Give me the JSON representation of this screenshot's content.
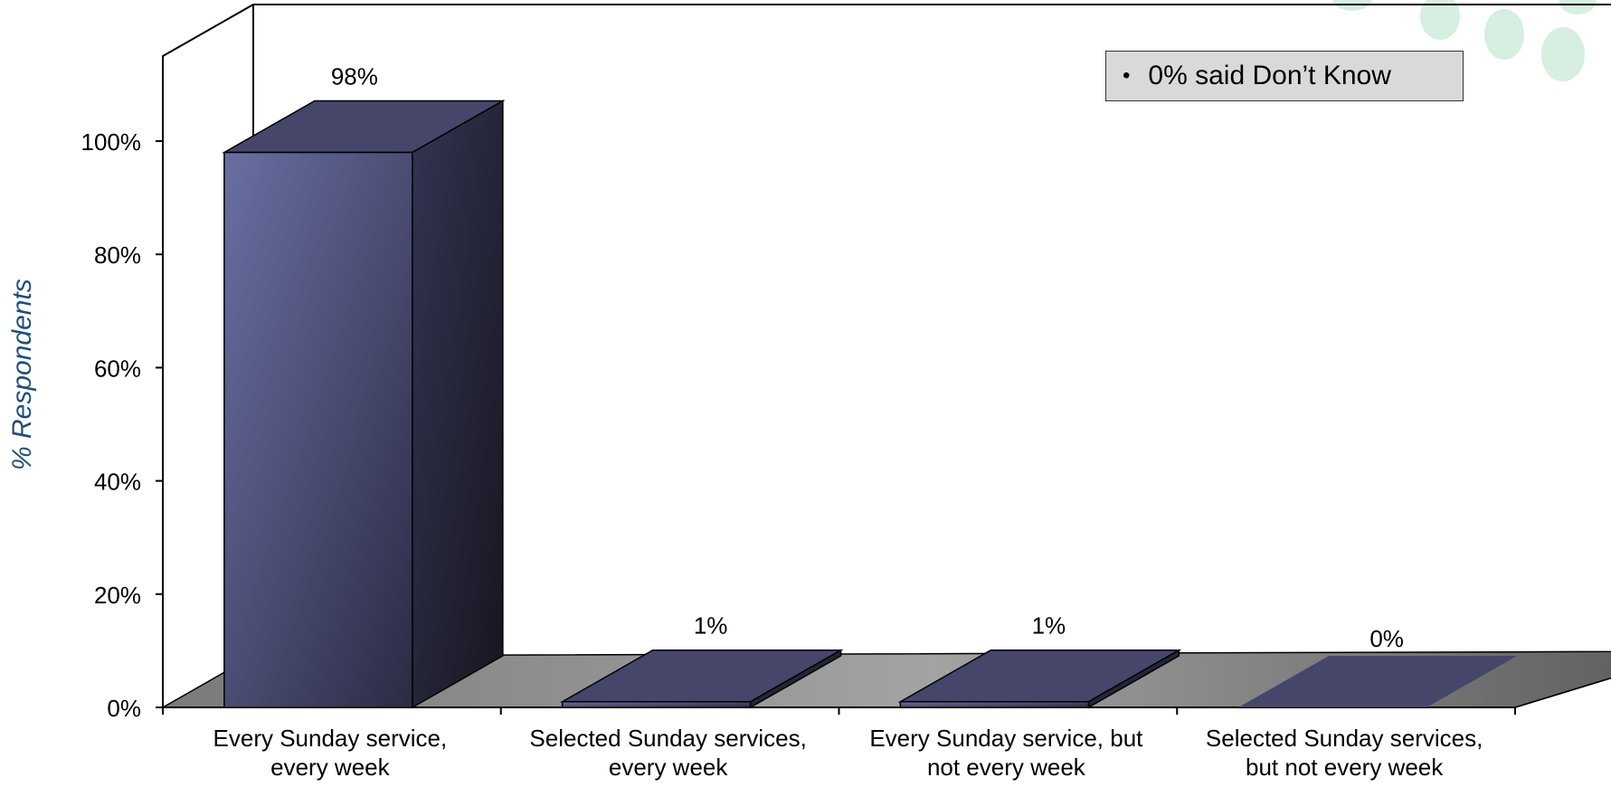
{
  "chart_data": {
    "type": "bar",
    "categories": [
      [
        "Every Sunday service,",
        "every week"
      ],
      [
        "Selected Sunday services,",
        "every week"
      ],
      [
        "Every Sunday service, but",
        "not every week"
      ],
      [
        "Selected Sunday services,",
        "but not every week"
      ]
    ],
    "values": [
      98,
      1,
      1,
      0
    ],
    "data_labels": [
      "98%",
      "1%",
      "1%",
      "0%"
    ],
    "ylabel": "% Respondents",
    "ylim": [
      0,
      100
    ],
    "yticks": [
      "0%",
      "20%",
      "40%",
      "60%",
      "80%",
      "100%"
    ],
    "annotation": "0% said Don’t Know",
    "colors": {
      "bar_front": "#5f6394",
      "bar_side": "#2a2a40",
      "bar_top": "#45466a",
      "floor": "#777777"
    },
    "style": "3d"
  }
}
